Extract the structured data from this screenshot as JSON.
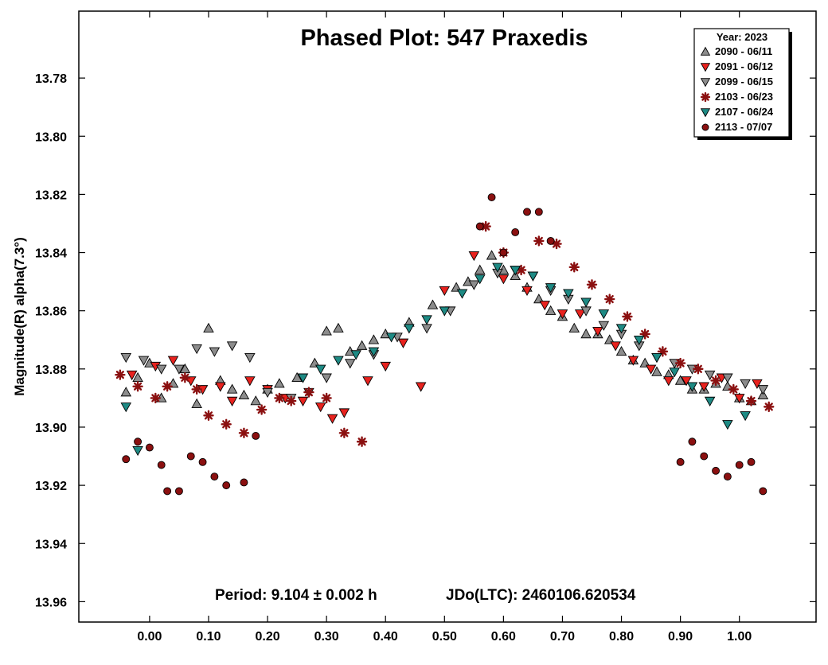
{
  "chart_data": {
    "type": "scatter",
    "title": "Phased Plot: 547 Praxedis",
    "xlabel": "",
    "ylabel": "Magnitude(R) alpha(7.3°)",
    "xlim": [
      -0.12,
      1.13
    ],
    "ylim": [
      13.967,
      13.757
    ],
    "y_inverted": true,
    "x_ticks": [
      "0.00",
      "0.10",
      "0.20",
      "0.30",
      "0.40",
      "0.50",
      "0.60",
      "0.70",
      "0.80",
      "0.90",
      "1.00"
    ],
    "y_ticks": [
      "13.78",
      "13.80",
      "13.82",
      "13.84",
      "13.86",
      "13.88",
      "13.90",
      "13.92",
      "13.94",
      "13.96"
    ],
    "grid": false,
    "legend_placement": "top-right",
    "legend_title": "Year: 2023",
    "footer_period": "Period: 9.104 ± 0.002 h",
    "footer_epoch": "JDo(LTC): 2460106.620534",
    "series": [
      {
        "name": "2090 - 06/11",
        "marker": "triangle-up",
        "color": "#8c8c8c",
        "x": [
          -0.04,
          -0.02,
          0.0,
          0.02,
          0.04,
          0.06,
          0.08,
          0.1,
          0.12,
          0.14,
          0.16,
          0.18,
          0.2,
          0.22,
          0.25,
          0.28,
          0.3,
          0.32,
          0.34,
          0.36,
          0.38,
          0.4,
          0.44,
          0.48,
          0.52,
          0.54,
          0.56,
          0.58,
          0.6,
          0.62,
          0.64,
          0.66,
          0.68,
          0.7,
          0.72,
          0.74,
          0.76,
          0.78,
          0.8,
          0.82,
          0.84,
          0.86,
          0.88,
          0.9,
          0.92,
          0.94,
          0.96,
          0.98,
          1.0,
          1.02,
          1.04
        ],
        "y": [
          13.888,
          13.883,
          13.878,
          13.89,
          13.885,
          13.88,
          13.892,
          13.866,
          13.884,
          13.887,
          13.889,
          13.891,
          13.887,
          13.885,
          13.883,
          13.878,
          13.867,
          13.866,
          13.874,
          13.872,
          13.87,
          13.868,
          13.864,
          13.858,
          13.852,
          13.85,
          13.846,
          13.841,
          13.846,
          13.848,
          13.852,
          13.856,
          13.86,
          13.862,
          13.866,
          13.868,
          13.868,
          13.87,
          13.874,
          13.877,
          13.878,
          13.881,
          13.882,
          13.884,
          13.887,
          13.887,
          13.885,
          13.886,
          13.89,
          13.891,
          13.889
        ]
      },
      {
        "name": "2091 - 06/12",
        "marker": "triangle-down",
        "color": "#e8221e",
        "x": [
          -0.03,
          0.01,
          0.04,
          0.07,
          0.09,
          0.12,
          0.14,
          0.17,
          0.2,
          0.23,
          0.26,
          0.29,
          0.31,
          0.33,
          0.37,
          0.4,
          0.43,
          0.46,
          0.5,
          0.55,
          0.6,
          0.64,
          0.67,
          0.7,
          0.73,
          0.76,
          0.79,
          0.82,
          0.85,
          0.88,
          0.91,
          0.94,
          0.97,
          1.0,
          1.03
        ],
        "y": [
          13.882,
          13.879,
          13.877,
          13.884,
          13.887,
          13.886,
          13.891,
          13.884,
          13.887,
          13.89,
          13.891,
          13.893,
          13.897,
          13.895,
          13.884,
          13.879,
          13.871,
          13.886,
          13.853,
          13.841,
          13.849,
          13.853,
          13.858,
          13.861,
          13.861,
          13.867,
          13.872,
          13.877,
          13.88,
          13.884,
          13.884,
          13.886,
          13.883,
          13.89,
          13.885
        ]
      },
      {
        "name": "2099 - 06/15",
        "marker": "triangle-down",
        "color": "#8c8c8c",
        "x": [
          -0.04,
          -0.01,
          0.02,
          0.05,
          0.08,
          0.11,
          0.14,
          0.17,
          0.2,
          0.24,
          0.27,
          0.3,
          0.34,
          0.38,
          0.42,
          0.47,
          0.51,
          0.55,
          0.59,
          0.62,
          0.65,
          0.68,
          0.71,
          0.74,
          0.77,
          0.8,
          0.83,
          0.86,
          0.89,
          0.92,
          0.95,
          0.98,
          1.01,
          1.04
        ],
        "y": [
          13.876,
          13.877,
          13.88,
          13.88,
          13.873,
          13.874,
          13.872,
          13.876,
          13.888,
          13.89,
          13.888,
          13.883,
          13.878,
          13.875,
          13.869,
          13.866,
          13.86,
          13.851,
          13.847,
          13.846,
          13.848,
          13.853,
          13.856,
          13.86,
          13.865,
          13.868,
          13.872,
          13.876,
          13.878,
          13.88,
          13.882,
          13.883,
          13.885,
          13.887
        ]
      },
      {
        "name": "2103 - 06/23",
        "marker": "star",
        "color": "#8b1010",
        "x": [
          -0.05,
          -0.02,
          0.01,
          0.03,
          0.06,
          0.08,
          0.1,
          0.13,
          0.16,
          0.19,
          0.22,
          0.24,
          0.27,
          0.3,
          0.33,
          0.36,
          0.57,
          0.6,
          0.63,
          0.66,
          0.69,
          0.72,
          0.75,
          0.78,
          0.81,
          0.84,
          0.87,
          0.9,
          0.93,
          0.96,
          0.99,
          1.02,
          1.05
        ],
        "y": [
          13.882,
          13.886,
          13.89,
          13.886,
          13.883,
          13.887,
          13.896,
          13.899,
          13.902,
          13.894,
          13.89,
          13.891,
          13.888,
          13.89,
          13.902,
          13.905,
          13.831,
          13.84,
          13.846,
          13.836,
          13.837,
          13.845,
          13.851,
          13.856,
          13.862,
          13.868,
          13.874,
          13.878,
          13.88,
          13.884,
          13.887,
          13.891,
          13.893
        ]
      },
      {
        "name": "2107 - 06/24",
        "marker": "triangle-down",
        "color": "#1e8a84",
        "x": [
          -0.04,
          -0.02,
          0.26,
          0.29,
          0.32,
          0.35,
          0.38,
          0.41,
          0.44,
          0.47,
          0.5,
          0.53,
          0.56,
          0.59,
          0.62,
          0.65,
          0.68,
          0.71,
          0.74,
          0.77,
          0.8,
          0.83,
          0.86,
          0.89,
          0.92,
          0.95,
          0.98,
          1.01
        ],
        "y": [
          13.893,
          13.908,
          13.883,
          13.88,
          13.877,
          13.875,
          13.874,
          13.869,
          13.866,
          13.863,
          13.86,
          13.854,
          13.849,
          13.845,
          13.846,
          13.848,
          13.852,
          13.854,
          13.857,
          13.861,
          13.866,
          13.87,
          13.876,
          13.881,
          13.886,
          13.891,
          13.899,
          13.896
        ]
      },
      {
        "name": "2113 - 07/07",
        "marker": "circle",
        "color": "#8b1010",
        "x": [
          -0.04,
          -0.02,
          0.0,
          0.02,
          0.03,
          0.05,
          0.07,
          0.09,
          0.11,
          0.13,
          0.16,
          0.18,
          0.56,
          0.58,
          0.6,
          0.62,
          0.64,
          0.66,
          0.68,
          0.9,
          0.92,
          0.94,
          0.96,
          0.98,
          1.0,
          1.02,
          1.04
        ],
        "y": [
          13.911,
          13.905,
          13.907,
          13.913,
          13.922,
          13.922,
          13.91,
          13.912,
          13.917,
          13.92,
          13.919,
          13.903,
          13.831,
          13.821,
          13.84,
          13.833,
          13.826,
          13.826,
          13.836,
          13.912,
          13.905,
          13.91,
          13.915,
          13.917,
          13.913,
          13.912,
          13.922
        ]
      }
    ]
  }
}
